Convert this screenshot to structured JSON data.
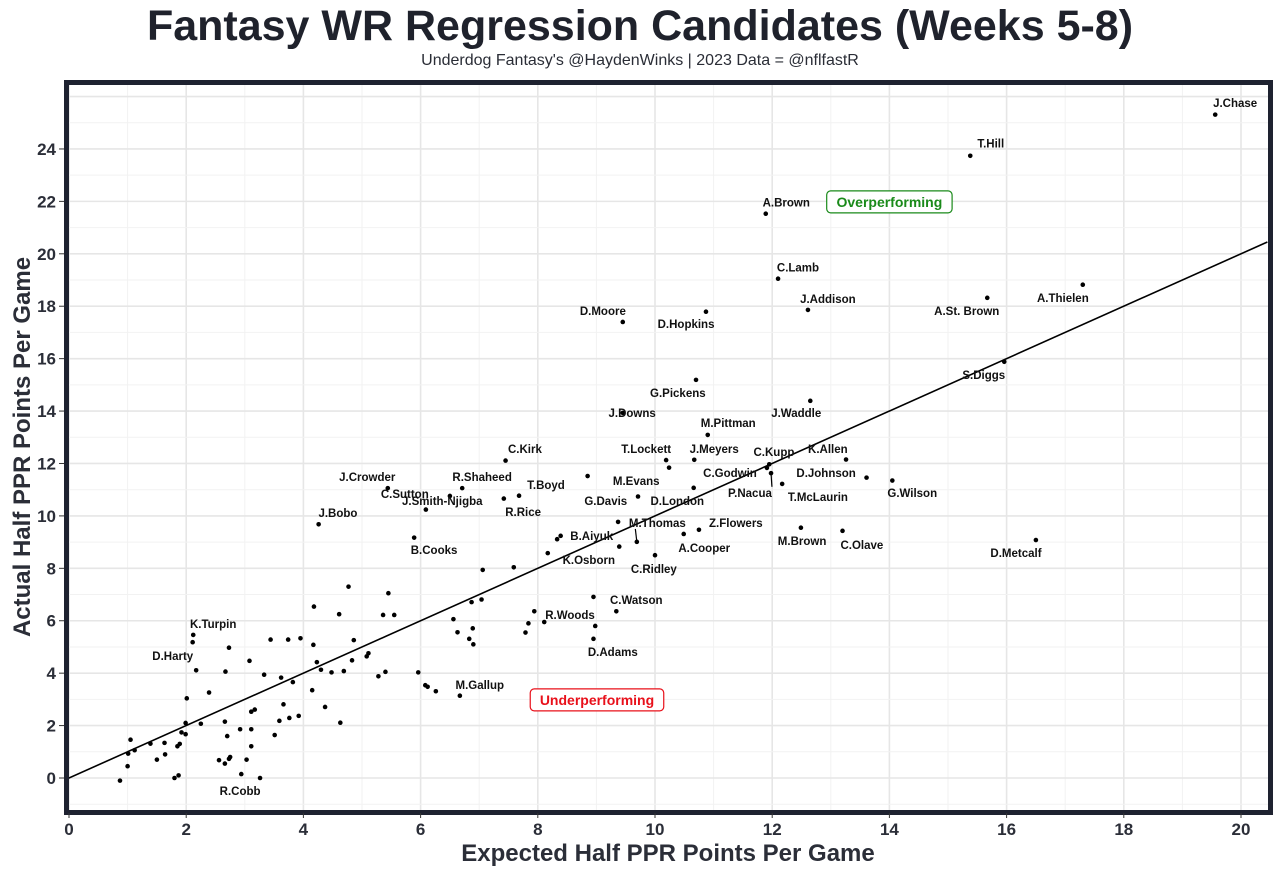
{
  "title": "Fantasy WR Regression Candidates (Weeks 5-8)",
  "subtitle": "Underdog Fantasy's @HaydenWinks | 2023 Data = @nflfastR",
  "chart_data": {
    "type": "scatter",
    "title": "Fantasy WR Regression Candidates (Weeks 5-8)",
    "xlabel": "Expected Half PPR Points Per Game",
    "ylabel": "Actual Half PPR Points Per Game",
    "xlim": [
      -0.05,
      20.45
    ],
    "ylim": [
      -1.3,
      26.45
    ],
    "xticks": [
      0,
      2,
      4,
      6,
      8,
      10,
      12,
      14,
      16,
      18,
      20
    ],
    "yticks": [
      0,
      2,
      4,
      6,
      8,
      10,
      12,
      14,
      16,
      18,
      20,
      22,
      24
    ],
    "grid": true,
    "reference_line": {
      "type": "y=x"
    },
    "annotations": [
      {
        "text": "Overperforming",
        "x": 14.0,
        "y": 21.98,
        "color": "#1a8a1a"
      },
      {
        "text": "Underperforming",
        "x": 9.01,
        "y": 2.98,
        "color": "#e8101a"
      }
    ],
    "labeled_points": [
      {
        "name": "J.Chase",
        "x": 19.56,
        "y": 25.31,
        "lx": 19.9,
        "ly": 25.76
      },
      {
        "name": "T.Hill",
        "x": 15.38,
        "y": 23.74,
        "lx": 15.73,
        "ly": 24.2
      },
      {
        "name": "A.Brown",
        "x": 11.89,
        "y": 21.53,
        "lx": 12.24,
        "ly": 21.95
      },
      {
        "name": "C.Lamb",
        "x": 12.1,
        "y": 19.05,
        "lx": 12.44,
        "ly": 19.47
      },
      {
        "name": "J.Addison",
        "x": 12.61,
        "y": 17.86,
        "lx": 12.95,
        "ly": 18.28
      },
      {
        "name": "D.Moore",
        "x": 9.45,
        "y": 17.4,
        "lx": 9.11,
        "ly": 17.82
      },
      {
        "name": "D.Hopkins",
        "x": 10.87,
        "y": 17.79,
        "lx": 10.53,
        "ly": 17.33
      },
      {
        "name": "A.St. Brown",
        "x": 15.67,
        "y": 18.32,
        "lx": 15.32,
        "ly": 17.82
      },
      {
        "name": "A.Thielen",
        "x": 17.3,
        "y": 18.82,
        "lx": 16.96,
        "ly": 18.32
      },
      {
        "name": "S.Diggs",
        "x": 15.96,
        "y": 15.88,
        "lx": 15.61,
        "ly": 15.38
      },
      {
        "name": "G.Pickens",
        "x": 10.7,
        "y": 15.19,
        "lx": 10.39,
        "ly": 14.69
      },
      {
        "name": "J.Waddle",
        "x": 12.65,
        "y": 14.39,
        "lx": 12.41,
        "ly": 13.93
      },
      {
        "name": "J.Downs",
        "x": 9.45,
        "y": 13.93,
        "lx": 9.61,
        "ly": 13.93
      },
      {
        "name": "M.Pittman",
        "x": 10.9,
        "y": 13.09,
        "lx": 11.25,
        "ly": 13.55
      },
      {
        "name": "C.Kirk",
        "x": 7.45,
        "y": 12.11,
        "lx": 7.78,
        "ly": 12.56
      },
      {
        "name": "T.Lockett",
        "x": 10.19,
        "y": 12.13,
        "lx": 9.85,
        "ly": 12.56
      },
      {
        "name": "J.Meyers",
        "x": 10.67,
        "y": 12.14,
        "lx": 11.01,
        "ly": 12.56
      },
      {
        "name": "C.Kupp",
        "x": 11.95,
        "y": 11.97,
        "lx": 12.03,
        "ly": 12.44
      },
      {
        "name": "C.Godwin",
        "x": 11.91,
        "y": 11.83,
        "lx": 11.28,
        "ly": 11.64
      },
      {
        "name": "P.Nacua",
        "x": 11.98,
        "y": 11.63,
        "lx": 11.62,
        "ly": 10.88,
        "leader": true
      },
      {
        "name": "K.Allen",
        "x": 13.26,
        "y": 12.15,
        "lx": 12.95,
        "ly": 12.56
      },
      {
        "name": "D.Johnson",
        "x": 13.61,
        "y": 11.46,
        "lx": 12.92,
        "ly": 11.64
      },
      {
        "name": "G.Wilson",
        "x": 14.05,
        "y": 11.35,
        "lx": 14.39,
        "ly": 10.88
      },
      {
        "name": "T.McLaurin",
        "x": 12.17,
        "y": 11.22,
        "lx": 12.78,
        "ly": 10.73
      },
      {
        "name": "J.Crowder",
        "x": 5.44,
        "y": 11.06,
        "lx": 5.09,
        "ly": 11.49
      },
      {
        "name": "R.Shaheed",
        "x": 6.71,
        "y": 11.06,
        "lx": 7.05,
        "ly": 11.49
      },
      {
        "name": "J.Smith-Njigba",
        "x": 6.5,
        "y": 10.76,
        "lx": 6.37,
        "ly": 10.57
      },
      {
        "name": "C.Sutton",
        "x": 6.09,
        "y": 10.24,
        "lx": 5.73,
        "ly": 10.84
      },
      {
        "name": "J.Bobo",
        "x": 4.26,
        "y": 9.68,
        "lx": 4.59,
        "ly": 10.11
      },
      {
        "name": "B.Cooks",
        "x": 5.89,
        "y": 9.17,
        "lx": 6.23,
        "ly": 8.7
      },
      {
        "name": "T.Boyd",
        "x": 7.68,
        "y": 10.77,
        "lx": 8.14,
        "ly": 11.18
      },
      {
        "name": "R.Rice",
        "x": 7.42,
        "y": 10.66,
        "lx": 7.75,
        "ly": 10.15
      },
      {
        "name": "G.Davis",
        "x": 8.85,
        "y": 11.52,
        "lx": 9.16,
        "ly": 10.57
      },
      {
        "name": "M.Evans",
        "x": 9.71,
        "y": 10.74,
        "lx": 9.68,
        "ly": 11.34
      },
      {
        "name": "D.London",
        "x": 10.66,
        "y": 11.07,
        "lx": 10.38,
        "ly": 10.57
      },
      {
        "name": "B.Aiyuk",
        "x": 8.39,
        "y": 9.24,
        "lx": 8.92,
        "ly": 9.24
      },
      {
        "name": "M.Thomas",
        "x": 9.69,
        "y": 9.01,
        "lx": 10.04,
        "ly": 9.73,
        "leader": true
      },
      {
        "name": "K.Osborn",
        "x": 8.17,
        "y": 8.58,
        "lx": 8.87,
        "ly": 8.32
      },
      {
        "name": "C.Ridley",
        "x": 10.0,
        "y": 8.5,
        "lx": 9.98,
        "ly": 7.98
      },
      {
        "name": "A.Cooper",
        "x": 10.49,
        "y": 9.31,
        "lx": 10.84,
        "ly": 8.78
      },
      {
        "name": "Z.Flowers",
        "x": 10.75,
        "y": 9.47,
        "lx": 11.38,
        "ly": 9.73
      },
      {
        "name": "M.Brown",
        "x": 12.49,
        "y": 9.55,
        "lx": 12.51,
        "ly": 9.05
      },
      {
        "name": "C.Olave",
        "x": 13.2,
        "y": 9.43,
        "lx": 13.53,
        "ly": 8.89
      },
      {
        "name": "D.Metcalf",
        "x": 16.5,
        "y": 9.08,
        "lx": 16.16,
        "ly": 8.59
      },
      {
        "name": "C.Watson",
        "x": 9.34,
        "y": 6.36,
        "lx": 9.68,
        "ly": 6.79
      },
      {
        "name": "R.Woods",
        "x": 7.94,
        "y": 6.36,
        "lx": 8.55,
        "ly": 6.22
      },
      {
        "name": "D.Adams",
        "x": 8.95,
        "y": 5.31,
        "lx": 9.28,
        "ly": 4.81
      },
      {
        "name": "M.Gallup",
        "x": 6.67,
        "y": 3.14,
        "lx": 7.01,
        "ly": 3.55
      },
      {
        "name": "K.Turpin",
        "x": 2.12,
        "y": 5.46,
        "lx": 2.46,
        "ly": 5.88
      },
      {
        "name": "D.Harty",
        "x": 2.11,
        "y": 5.18,
        "lx": 1.77,
        "ly": 4.66
      },
      {
        "name": "R.Cobb",
        "x": 3.26,
        "y": 0.0,
        "lx": 2.92,
        "ly": -0.5
      }
    ],
    "other_points": [
      [
        8.33,
        9.11
      ],
      [
        9.37,
        9.77
      ],
      [
        9.39,
        8.83
      ],
      [
        8.95,
        6.91
      ],
      [
        7.84,
        5.9
      ],
      [
        8.11,
        5.95
      ],
      [
        7.79,
        5.55
      ],
      [
        8.98,
        5.8
      ],
      [
        7.59,
        8.04
      ],
      [
        7.06,
        7.94
      ],
      [
        10.24,
        11.84
      ],
      [
        4.77,
        7.3
      ],
      [
        5.45,
        7.05
      ],
      [
        4.18,
        6.54
      ],
      [
        4.61,
        6.25
      ],
      [
        5.36,
        6.22
      ],
      [
        5.55,
        6.22
      ],
      [
        3.74,
        5.28
      ],
      [
        3.95,
        5.33
      ],
      [
        4.17,
        5.08
      ],
      [
        4.86,
        5.26
      ],
      [
        4.23,
        4.42
      ],
      [
        4.3,
        4.13
      ],
      [
        4.48,
        4.03
      ],
      [
        4.69,
        4.08
      ],
      [
        4.83,
        4.49
      ],
      [
        5.08,
        4.64
      ],
      [
        5.11,
        4.76
      ],
      [
        5.28,
        3.88
      ],
      [
        5.4,
        4.05
      ],
      [
        5.96,
        4.03
      ],
      [
        6.08,
        3.54
      ],
      [
        6.12,
        3.48
      ],
      [
        6.26,
        3.31
      ],
      [
        3.82,
        3.66
      ],
      [
        4.15,
        3.35
      ],
      [
        4.37,
        2.71
      ],
      [
        3.76,
        2.29
      ],
      [
        3.92,
        2.37
      ],
      [
        4.63,
        2.11
      ],
      [
        3.59,
        2.18
      ],
      [
        6.56,
        6.06
      ],
      [
        6.63,
        5.56
      ],
      [
        6.89,
        5.71
      ],
      [
        6.83,
        5.31
      ],
      [
        6.9,
        5.1
      ],
      [
        6.87,
        6.71
      ],
      [
        7.04,
        6.81
      ],
      [
        3.44,
        5.28
      ],
      [
        2.73,
        4.97
      ],
      [
        3.08,
        4.47
      ],
      [
        2.17,
        4.11
      ],
      [
        2.67,
        4.06
      ],
      [
        3.33,
        3.94
      ],
      [
        3.62,
        3.83
      ],
      [
        2.01,
        3.04
      ],
      [
        2.39,
        3.26
      ],
      [
        1.99,
        2.1
      ],
      [
        2.25,
        2.07
      ],
      [
        2.66,
        2.15
      ],
      [
        3.11,
        2.53
      ],
      [
        3.17,
        2.61
      ],
      [
        3.66,
        2.81
      ],
      [
        1.92,
        1.74
      ],
      [
        1.99,
        1.67
      ],
      [
        2.7,
        1.6
      ],
      [
        2.92,
        1.86
      ],
      [
        3.11,
        1.86
      ],
      [
        3.51,
        1.64
      ],
      [
        1.05,
        1.46
      ],
      [
        1.39,
        1.31
      ],
      [
        1.63,
        1.34
      ],
      [
        1.85,
        1.21
      ],
      [
        1.89,
        1.3
      ],
      [
        3.11,
        1.21
      ],
      [
        1.01,
        0.93
      ],
      [
        1.12,
        1.06
      ],
      [
        1.64,
        0.9
      ],
      [
        1.5,
        0.7
      ],
      [
        1.0,
        0.45
      ],
      [
        2.56,
        0.68
      ],
      [
        2.66,
        0.55
      ],
      [
        2.73,
        0.73
      ],
      [
        2.75,
        0.8
      ],
      [
        3.03,
        0.7
      ],
      [
        0.87,
        -0.1
      ],
      [
        1.8,
        0.0
      ],
      [
        1.87,
        0.1
      ],
      [
        2.94,
        0.15
      ]
    ]
  }
}
